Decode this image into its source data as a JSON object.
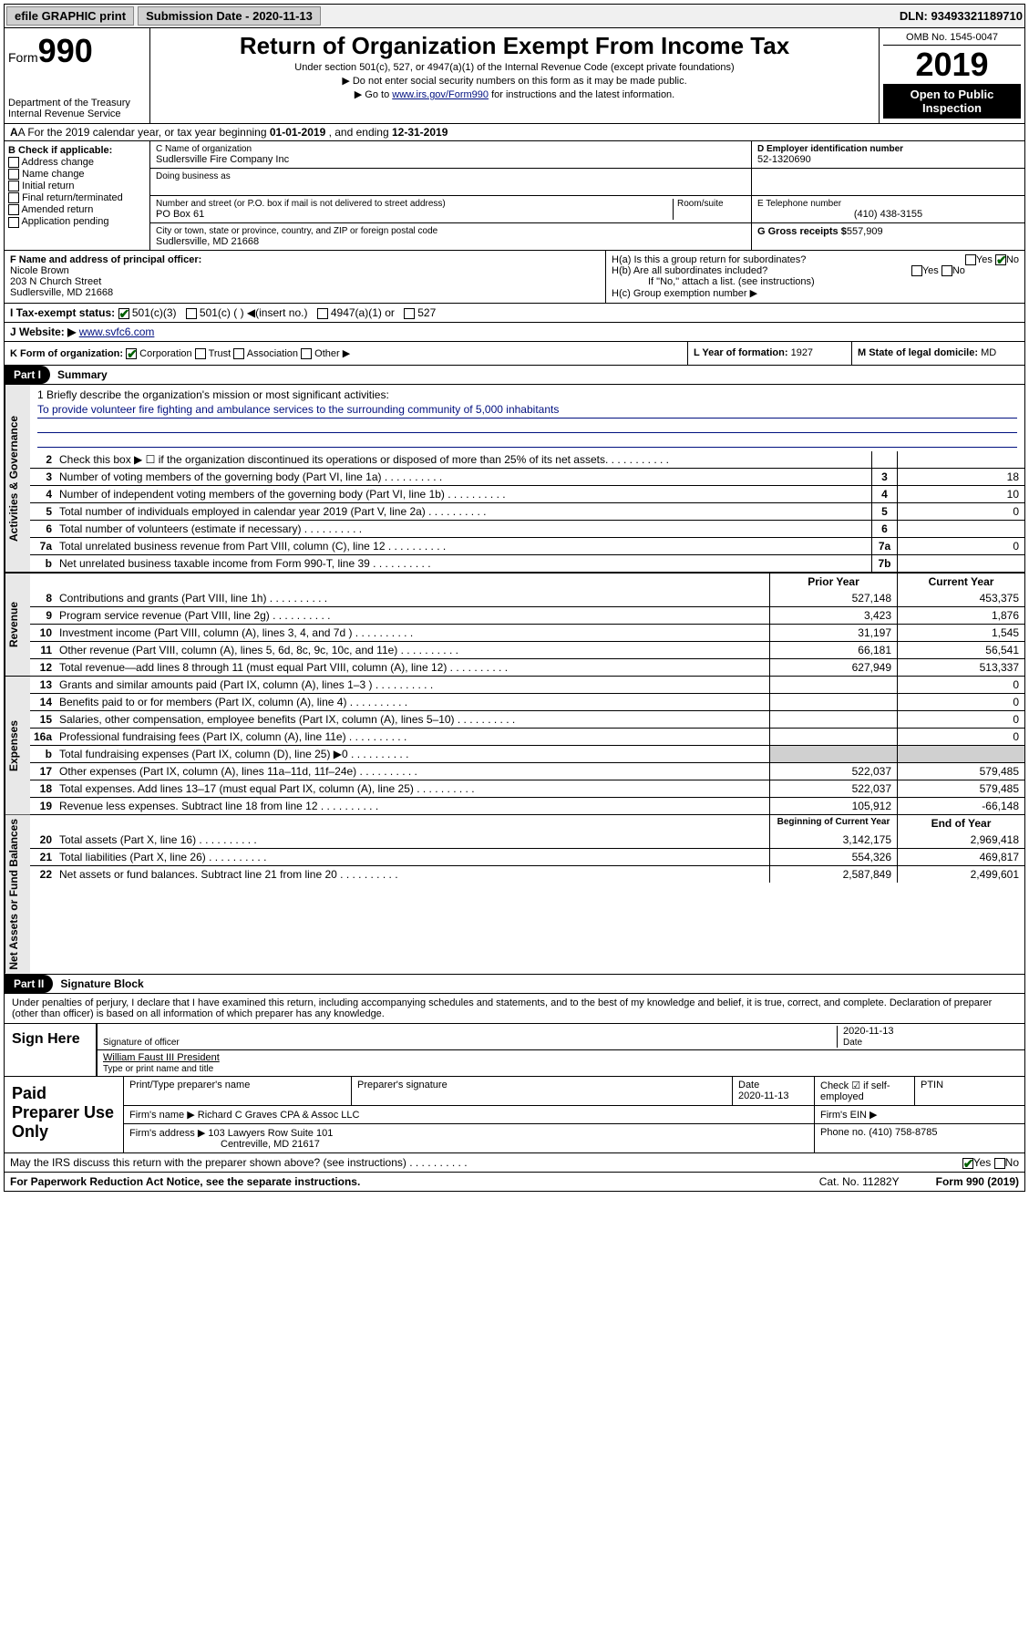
{
  "topbar": {
    "efile": "efile GRAPHIC print",
    "subdate_label": "Submission Date - 2020-11-13",
    "dln": "DLN: 93493321189710"
  },
  "header": {
    "form_label": "Form",
    "form_num": "990",
    "dept": "Department of the Treasury",
    "irs": "Internal Revenue Service",
    "title": "Return of Organization Exempt From Income Tax",
    "sub1": "Under section 501(c), 527, or 4947(a)(1) of the Internal Revenue Code (except private foundations)",
    "sub2": "▶ Do not enter social security numbers on this form as it may be made public.",
    "sub3_pre": "▶ Go to ",
    "sub3_link": "www.irs.gov/Form990",
    "sub3_post": " for instructions and the latest information.",
    "omb": "OMB No. 1545-0047",
    "year": "2019",
    "open": "Open to Public Inspection"
  },
  "rowA": {
    "text_pre": "A For the 2019 calendar year, or tax year beginning ",
    "begin": "01-01-2019",
    "mid": " , and ending ",
    "end": "12-31-2019"
  },
  "colB": {
    "label": "B Check if applicable:",
    "opts": [
      "Address change",
      "Name change",
      "Initial return",
      "Final return/terminated",
      "Amended return",
      "Application pending"
    ]
  },
  "boxC": {
    "name_label": "C Name of organization",
    "name": "Sudlersville Fire Company Inc",
    "dba_label": "Doing business as",
    "addr_label": "Number and street (or P.O. box if mail is not delivered to street address)",
    "room_label": "Room/suite",
    "addr": "PO Box 61",
    "city_label": "City or town, state or province, country, and ZIP or foreign postal code",
    "city": "Sudlersville, MD  21668"
  },
  "boxD": {
    "label": "D Employer identification number",
    "val": "52-1320690"
  },
  "boxE": {
    "label": "E Telephone number",
    "val": "(410) 438-3155"
  },
  "boxG": {
    "label": "G Gross receipts $",
    "val": "557,909"
  },
  "boxF": {
    "label": "F  Name and address of principal officer:",
    "name": "Nicole Brown",
    "addr1": "203 N Church Street",
    "addr2": "Sudlersville, MD  21668"
  },
  "boxH": {
    "ha": "H(a)  Is this a group return for subordinates?",
    "hb": "H(b)  Are all subordinates included?",
    "hb_note": "If \"No,\" attach a list. (see instructions)",
    "hc": "H(c)  Group exemption number ▶",
    "yes": "Yes",
    "no": "No"
  },
  "rowI": {
    "label": "I  Tax-exempt status:",
    "o1": "501(c)(3)",
    "o2": "501(c) (  ) ◀(insert no.)",
    "o3": "4947(a)(1) or",
    "o4": "527"
  },
  "rowJ": {
    "label": "J  Website: ▶",
    "val": "www.svfc6.com"
  },
  "rowK": {
    "label": "K Form of organization:",
    "o1": "Corporation",
    "o2": "Trust",
    "o3": "Association",
    "o4": "Other ▶"
  },
  "rowL": {
    "label": "L Year of formation:",
    "val": "1927"
  },
  "rowM": {
    "label": "M State of legal domicile:",
    "val": "MD"
  },
  "part1": {
    "hdr": "Part I",
    "title": "Summary"
  },
  "mission": {
    "q": "1  Briefly describe the organization's mission or most significant activities:",
    "text": "To provide volunteer fire fighting and ambulance services to the surrounding community of 5,000 inhabitants"
  },
  "lines_gov": [
    {
      "n": "2",
      "d": "Check this box ▶ ☐  if the organization discontinued its operations or disposed of more than 25% of its net assets.",
      "box": "",
      "v": ""
    },
    {
      "n": "3",
      "d": "Number of voting members of the governing body (Part VI, line 1a)",
      "box": "3",
      "v": "18"
    },
    {
      "n": "4",
      "d": "Number of independent voting members of the governing body (Part VI, line 1b)",
      "box": "4",
      "v": "10"
    },
    {
      "n": "5",
      "d": "Total number of individuals employed in calendar year 2019 (Part V, line 2a)",
      "box": "5",
      "v": "0"
    },
    {
      "n": "6",
      "d": "Total number of volunteers (estimate if necessary)",
      "box": "6",
      "v": ""
    },
    {
      "n": "7a",
      "d": "Total unrelated business revenue from Part VIII, column (C), line 12",
      "box": "7a",
      "v": "0"
    },
    {
      "n": "b",
      "d": "Net unrelated business taxable income from Form 990-T, line 39",
      "box": "7b",
      "v": ""
    }
  ],
  "col_hdrs": {
    "py": "Prior Year",
    "cy": "Current Year",
    "boy": "Beginning of Current Year",
    "eoy": "End of Year"
  },
  "lines_rev": [
    {
      "n": "8",
      "d": "Contributions and grants (Part VIII, line 1h)",
      "py": "527,148",
      "cy": "453,375"
    },
    {
      "n": "9",
      "d": "Program service revenue (Part VIII, line 2g)",
      "py": "3,423",
      "cy": "1,876"
    },
    {
      "n": "10",
      "d": "Investment income (Part VIII, column (A), lines 3, 4, and 7d )",
      "py": "31,197",
      "cy": "1,545"
    },
    {
      "n": "11",
      "d": "Other revenue (Part VIII, column (A), lines 5, 6d, 8c, 9c, 10c, and 11e)",
      "py": "66,181",
      "cy": "56,541"
    },
    {
      "n": "12",
      "d": "Total revenue—add lines 8 through 11 (must equal Part VIII, column (A), line 12)",
      "py": "627,949",
      "cy": "513,337"
    }
  ],
  "lines_exp": [
    {
      "n": "13",
      "d": "Grants and similar amounts paid (Part IX, column (A), lines 1–3 )",
      "py": "",
      "cy": "0"
    },
    {
      "n": "14",
      "d": "Benefits paid to or for members (Part IX, column (A), line 4)",
      "py": "",
      "cy": "0"
    },
    {
      "n": "15",
      "d": "Salaries, other compensation, employee benefits (Part IX, column (A), lines 5–10)",
      "py": "",
      "cy": "0"
    },
    {
      "n": "16a",
      "d": "Professional fundraising fees (Part IX, column (A), line 11e)",
      "py": "",
      "cy": "0"
    },
    {
      "n": "b",
      "d": "Total fundraising expenses (Part IX, column (D), line 25) ▶0",
      "py": "shade",
      "cy": "shade"
    },
    {
      "n": "17",
      "d": "Other expenses (Part IX, column (A), lines 11a–11d, 11f–24e)",
      "py": "522,037",
      "cy": "579,485"
    },
    {
      "n": "18",
      "d": "Total expenses. Add lines 13–17 (must equal Part IX, column (A), line 25)",
      "py": "522,037",
      "cy": "579,485"
    },
    {
      "n": "19",
      "d": "Revenue less expenses. Subtract line 18 from line 12",
      "py": "105,912",
      "cy": "-66,148"
    }
  ],
  "lines_na": [
    {
      "n": "20",
      "d": "Total assets (Part X, line 16)",
      "py": "3,142,175",
      "cy": "2,969,418"
    },
    {
      "n": "21",
      "d": "Total liabilities (Part X, line 26)",
      "py": "554,326",
      "cy": "469,817"
    },
    {
      "n": "22",
      "d": "Net assets or fund balances. Subtract line 21 from line 20",
      "py": "2,587,849",
      "cy": "2,499,601"
    }
  ],
  "vtabs": {
    "gov": "Activities & Governance",
    "rev": "Revenue",
    "exp": "Expenses",
    "na": "Net Assets or Fund Balances"
  },
  "part2": {
    "hdr": "Part II",
    "title": "Signature Block"
  },
  "perjury": "Under penalties of perjury, I declare that I have examined this return, including accompanying schedules and statements, and to the best of my knowledge and belief, it is true, correct, and complete. Declaration of preparer (other than officer) is based on all information of which preparer has any knowledge.",
  "sign": {
    "here": "Sign Here",
    "sig_label": "Signature of officer",
    "date_label": "Date",
    "date": "2020-11-13",
    "name": "William Faust III  President",
    "name_label": "Type or print name and title"
  },
  "prep": {
    "title": "Paid Preparer Use Only",
    "h1": "Print/Type preparer's name",
    "h2": "Preparer's signature",
    "h3": "Date",
    "h3v": "2020-11-13",
    "h4": "Check ☑ if self-employed",
    "h5": "PTIN",
    "firm_label": "Firm's name    ▶",
    "firm": "Richard C Graves CPA & Assoc LLC",
    "ein_label": "Firm's EIN ▶",
    "addr_label": "Firm's address ▶",
    "addr1": "103 Lawyers Row Suite 101",
    "addr2": "Centreville, MD  21617",
    "phone_label": "Phone no.",
    "phone": "(410) 758-8785"
  },
  "discuss": {
    "q": "May the IRS discuss this return with the preparer shown above? (see instructions)",
    "yes": "Yes",
    "no": "No"
  },
  "footer": {
    "pra": "For Paperwork Reduction Act Notice, see the separate instructions.",
    "cat": "Cat. No. 11282Y",
    "form": "Form 990 (2019)"
  }
}
